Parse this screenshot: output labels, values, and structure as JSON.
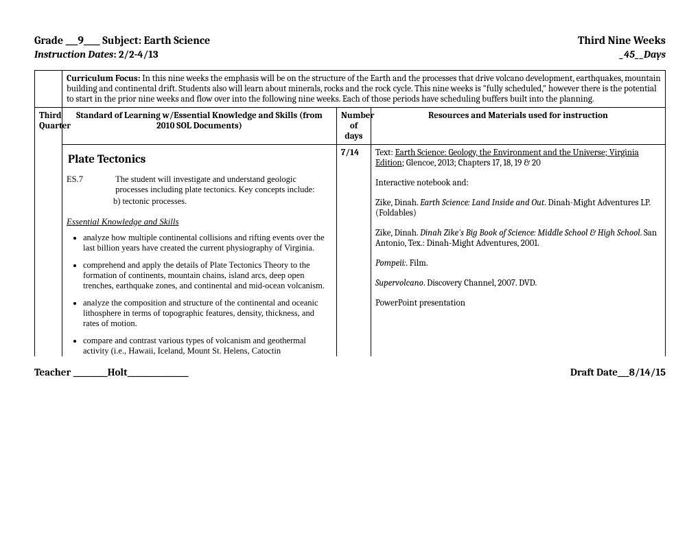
{
  "header": {
    "left": "Grade ___9____     Subject: Earth Science",
    "right": "Third Nine Weeks",
    "sub_left_label": "Instruction Dates",
    "sub_left_value": ":  2/2-4/13",
    "sub_right": "_45__Days"
  },
  "curriculum_focus": {
    "label": "Curriculum Focus:",
    "text": "  In this nine weeks the emphasis will be on the structure of the Earth and the processes that drive volcano development, earthquakes, mountain building and continental drift.  Students also will learn about minerals, rocks and the rock cycle.  This nine weeks is \"fully scheduled,\" however there is the potential to start in the prior nine weeks and flow over into the following nine weeks.  Each of those periods have scheduling buffers built into the planning."
  },
  "column_headers": {
    "quarter": "Third Quarter",
    "sol": "Standard of Learning w/Essential Knowledge and Skills (from 2010 SOL Documents)",
    "days": "Number of days",
    "resources": "Resources and Materials used for instruction"
  },
  "content": {
    "topic_title": "Plate Tectonics",
    "days_value": "7/14",
    "sol_code": "ES.7",
    "sol_desc": "The student will investigate and understand geologic processes including plate tectonics. Key concepts include:",
    "sol_sub": "b)    tectonic processes.",
    "eks_title": "Essential Knowledge and Skills",
    "eks_items": [
      "analyze how multiple continental collisions and rifting events over the last billion years have created the current physiography of Virginia.",
      "comprehend and apply the details of Plate Tectonics Theory to the formation of continents, mountain chains, island arcs, deep open trenches, earthquake zones, and continental and mid-ocean volcanism.",
      "analyze the composition and structure of the continental and oceanic lithosphere in terms of topographic features, density, thickness, and rates of motion.",
      "compare and contrast various types of volcanism and geothermal activity (i.e., Hawaii, Iceland, Mount St. Helens, Catoctin"
    ]
  },
  "resources": {
    "r1_label": "Text:  ",
    "r1_underline": "Earth Science:  Geology, the Environment and the Universe; Virginia Edition",
    "r1_rest": "; Glencoe, 2013; Chapters 17, 18, 19 & 20",
    "r2": "Interactive notebook and:",
    "r3_author": "Zike, Dinah. ",
    "r3_title": "Earth Science:  Land Inside and Out",
    "r3_rest": ". Dinah-Might Adventures LP. (Foldables)",
    "r4_author": "Zike, Dinah. ",
    "r4_title": "Dinah Zike's Big Book of Science: Middle School & High School",
    "r4_rest": ". San Antonio, Tex.: Dinah-Might Adventures, 2001.",
    "r5_title": "Pompeii:",
    "r5_rest": ". Film.",
    "r6_title": "Supervolcano",
    "r6_rest": ". Discovery Channel, 2007. DVD.",
    "r7": "PowerPoint presentation"
  },
  "footer": {
    "left": "Teacher _________Holt________________",
    "right": "Draft Date___8/14/15"
  },
  "colors": {
    "text": "#000000",
    "bg": "#ffffff",
    "border": "#000000"
  }
}
